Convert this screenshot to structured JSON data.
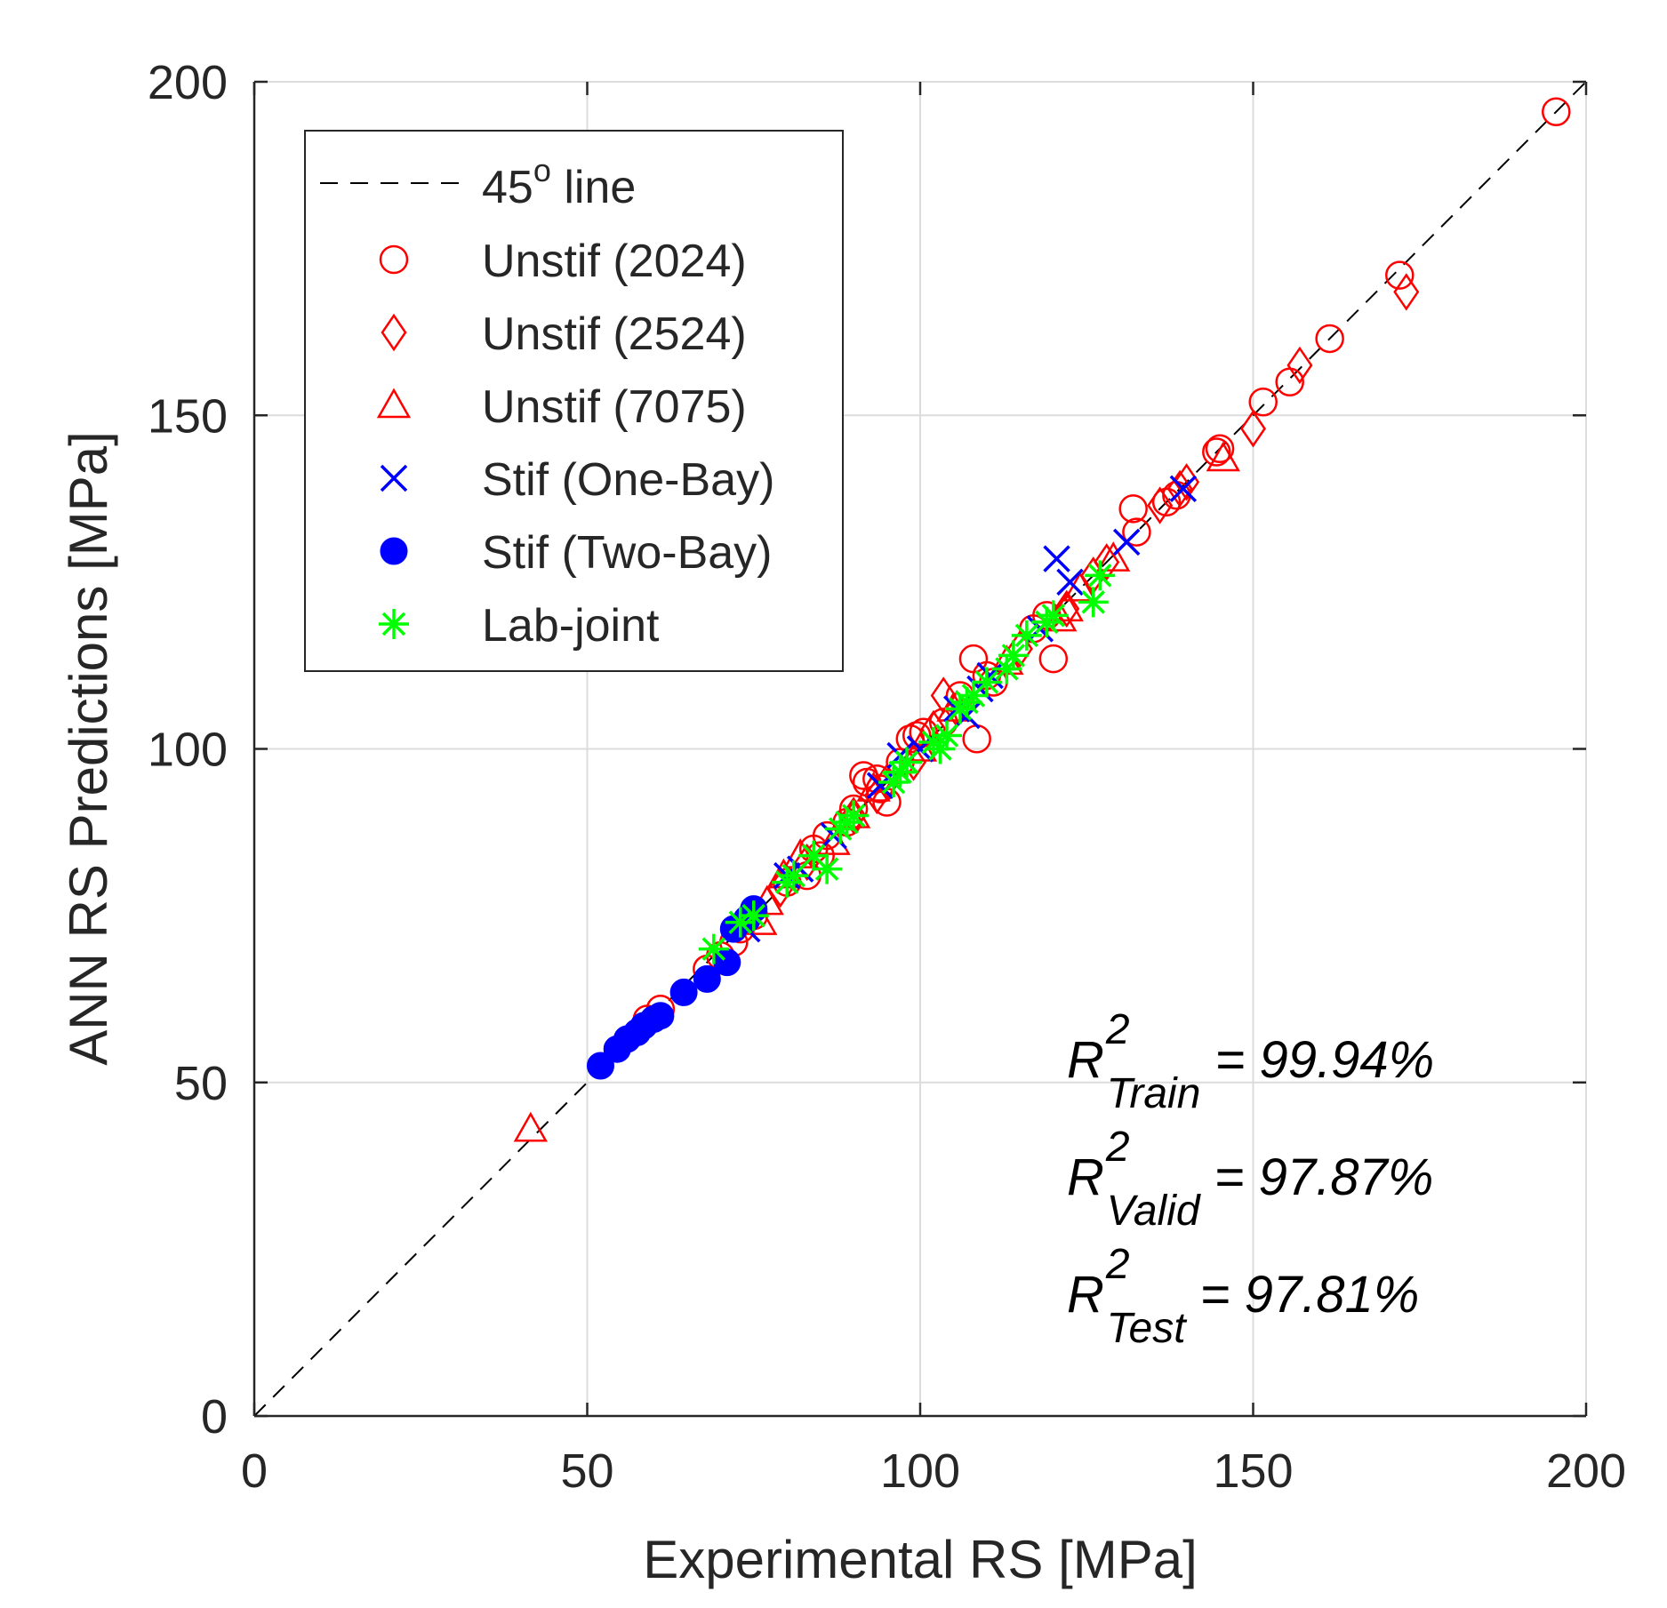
{
  "chart_data": {
    "type": "scatter",
    "xlabel": "Experimental RS [MPa]",
    "ylabel": "ANN RS Predictions [MPa]",
    "xlim": [
      0,
      200
    ],
    "ylim": [
      0,
      200
    ],
    "xticks": [
      "0",
      "50",
      "100",
      "150",
      "200"
    ],
    "yticks": [
      "0",
      "50",
      "100",
      "150",
      "200"
    ],
    "grid": true,
    "legend_position": "top-left",
    "reference_line": {
      "label": "45",
      "label_superscript": "o",
      "label_suffix": " line",
      "style": "dashed",
      "color": "#000000"
    },
    "series": [
      {
        "name": "Unstif (2024)",
        "marker": "circle",
        "color": "#ff0000",
        "points": [
          [
            195.5,
            195.5
          ],
          [
            172,
            171
          ],
          [
            161.5,
            161.5
          ],
          [
            155.5,
            155
          ],
          [
            151.5,
            152
          ],
          [
            145,
            145
          ],
          [
            144.5,
            144.5
          ],
          [
            138.5,
            138
          ],
          [
            137,
            137
          ],
          [
            132.5,
            132.5
          ],
          [
            132,
            136
          ],
          [
            120,
            113.5
          ],
          [
            119,
            120
          ],
          [
            117,
            118
          ],
          [
            111,
            110
          ],
          [
            110,
            111
          ],
          [
            108.5,
            101.5
          ],
          [
            108,
            113.5
          ],
          [
            106,
            108
          ],
          [
            103.5,
            104
          ],
          [
            100.5,
            102.5
          ],
          [
            99.5,
            102
          ],
          [
            98.5,
            101.5
          ],
          [
            97,
            98
          ],
          [
            95,
            92
          ],
          [
            94,
            94
          ],
          [
            93.5,
            95.5
          ],
          [
            92,
            95
          ],
          [
            91.5,
            96
          ],
          [
            90,
            91
          ],
          [
            89,
            89
          ],
          [
            86,
            87
          ],
          [
            85,
            84
          ],
          [
            84,
            85
          ],
          [
            83,
            81
          ],
          [
            80,
            80
          ],
          [
            75,
            75
          ],
          [
            73,
            73
          ],
          [
            72,
            71
          ],
          [
            70,
            69
          ],
          [
            68,
            67
          ],
          [
            61,
            61
          ],
          [
            59,
            59.5
          ]
        ]
      },
      {
        "name": "Unstif (2524)",
        "marker": "diamond",
        "color": "#ff0000",
        "points": [
          [
            173,
            168.5
          ],
          [
            157,
            157.5
          ],
          [
            150,
            148
          ],
          [
            140,
            140
          ],
          [
            139,
            139
          ],
          [
            136,
            136.5
          ],
          [
            128,
            128
          ],
          [
            126,
            126
          ],
          [
            122,
            121
          ],
          [
            115,
            115
          ],
          [
            105.5,
            106
          ],
          [
            103.5,
            108
          ],
          [
            102,
            103
          ],
          [
            99,
            98
          ],
          [
            95,
            95
          ],
          [
            93.5,
            93
          ],
          [
            90,
            90
          ],
          [
            83,
            83
          ],
          [
            79,
            79
          ]
        ]
      },
      {
        "name": "Unstif (7075)",
        "marker": "triangle",
        "color": "#ff0000",
        "points": [
          [
            41.5,
            43
          ],
          [
            145.5,
            143.5
          ],
          [
            129,
            128.5
          ],
          [
            124,
            124
          ],
          [
            122,
            121
          ],
          [
            121,
            119.5
          ],
          [
            113,
            113
          ],
          [
            105,
            106
          ],
          [
            100,
            100
          ],
          [
            93,
            94
          ],
          [
            90,
            90
          ],
          [
            87,
            86
          ],
          [
            82,
            84
          ],
          [
            79.5,
            81
          ],
          [
            77,
            77
          ],
          [
            76,
            74
          ]
        ]
      },
      {
        "name": "Stif (One-Bay)",
        "marker": "x",
        "color": "#0000ff",
        "points": [
          [
            139.5,
            139
          ],
          [
            131,
            131
          ],
          [
            122.5,
            125
          ],
          [
            120.5,
            128.5
          ],
          [
            118,
            118
          ],
          [
            110.5,
            111
          ],
          [
            109,
            109
          ],
          [
            107,
            105
          ],
          [
            105.5,
            106
          ],
          [
            100,
            100
          ],
          [
            97,
            99
          ],
          [
            94,
            94.5
          ],
          [
            87,
            87
          ],
          [
            82,
            82
          ],
          [
            80,
            81
          ],
          [
            74,
            73
          ]
        ]
      },
      {
        "name": "Stif (Two-Bay)",
        "marker": "filled-circle",
        "color": "#0000ff",
        "points": [
          [
            52,
            52.5
          ],
          [
            54.5,
            55
          ],
          [
            56,
            56.5
          ],
          [
            57.5,
            57.5
          ],
          [
            58.5,
            58.5
          ],
          [
            60,
            59.5
          ],
          [
            61,
            60
          ],
          [
            64.5,
            63.5
          ],
          [
            68,
            65.5
          ],
          [
            71,
            68
          ],
          [
            72,
            73
          ],
          [
            74,
            74.5
          ],
          [
            75,
            76
          ]
        ]
      },
      {
        "name": "Lab-joint",
        "marker": "asterisk",
        "color": "#00ff00",
        "points": [
          [
            69,
            70
          ],
          [
            73,
            74
          ],
          [
            75,
            75
          ],
          [
            80,
            80
          ],
          [
            81,
            81
          ],
          [
            84,
            84
          ],
          [
            86,
            82
          ],
          [
            88,
            88
          ],
          [
            89,
            89
          ],
          [
            90,
            90
          ],
          [
            96,
            95
          ],
          [
            97,
            96.5
          ],
          [
            98,
            98
          ],
          [
            102,
            101
          ],
          [
            103,
            100
          ],
          [
            104,
            102
          ],
          [
            106,
            106
          ],
          [
            107,
            107
          ],
          [
            108,
            108
          ],
          [
            110,
            110
          ],
          [
            113,
            112
          ],
          [
            114,
            114
          ],
          [
            116,
            117
          ],
          [
            119,
            119
          ],
          [
            120,
            120
          ],
          [
            126,
            122
          ],
          [
            127,
            126
          ]
        ]
      }
    ],
    "annotations": [
      {
        "symbol": "R",
        "sup": "2",
        "sub": "Train",
        "text": " = 99.94%"
      },
      {
        "symbol": "R",
        "sup": "2",
        "sub": "Valid",
        "text": " = 97.87%"
      },
      {
        "symbol": "R",
        "sup": "2",
        "sub": "Test",
        "text": " = 97.81%"
      }
    ]
  }
}
